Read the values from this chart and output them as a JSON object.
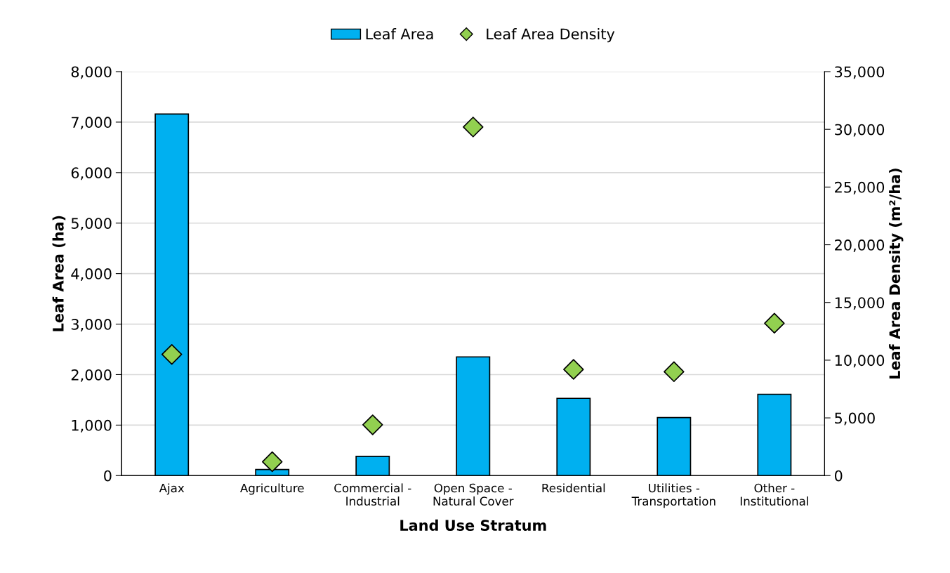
{
  "chart_data": {
    "type": "bar",
    "xlabel": "Land Use Stratum",
    "ylabel": "Leaf Area (ha)",
    "y2label": "Leaf Area Density (m²/ha)",
    "categories": [
      "Ajax",
      "Agriculture",
      "Commercial -\nIndustrial",
      "Open Space -\nNatural Cover",
      "Residential",
      "Utilities -\nTransportation",
      "Other -\nInstitutional"
    ],
    "series": [
      {
        "name": "Leaf Area",
        "color": "#00b0f0",
        "values": [
          7160,
          120,
          380,
          2350,
          1530,
          1150,
          1610
        ]
      },
      {
        "name": "Leaf Area Density",
        "type": "scatter",
        "axis": "y2",
        "color": "#92d050",
        "marker": "diamond",
        "values": [
          10500,
          1200,
          4400,
          30200,
          9200,
          9000,
          13200
        ]
      }
    ],
    "ylim": [
      0,
      8000
    ],
    "yticks": [
      0,
      {
        "value": 1000,
        "label": "1,000"
      },
      {
        "value": 2000,
        "label": "2,000"
      },
      {
        "value": 3000,
        "label": "3,000"
      },
      {
        "value": 4000,
        "label": "4,000"
      },
      {
        "value": 5000,
        "label": "5,000"
      },
      {
        "value": 6000,
        "label": "6,000"
      },
      {
        "value": 7000,
        "label": "7,000"
      },
      {
        "value": 8000,
        "label": "8,000"
      }
    ],
    "y2lim": [
      0,
      35000
    ],
    "y2ticks": [
      0,
      {
        "value": 5000,
        "label": "5,000"
      },
      {
        "value": 10000,
        "label": "10,000"
      },
      {
        "value": 15000,
        "label": "15,000"
      },
      {
        "value": 20000,
        "label": "20,000"
      },
      {
        "value": 25000,
        "label": "25,000"
      },
      {
        "value": 30000,
        "label": "30,000"
      },
      {
        "value": 35000,
        "label": "35,000"
      }
    ],
    "grid": "y",
    "legend": "top"
  }
}
